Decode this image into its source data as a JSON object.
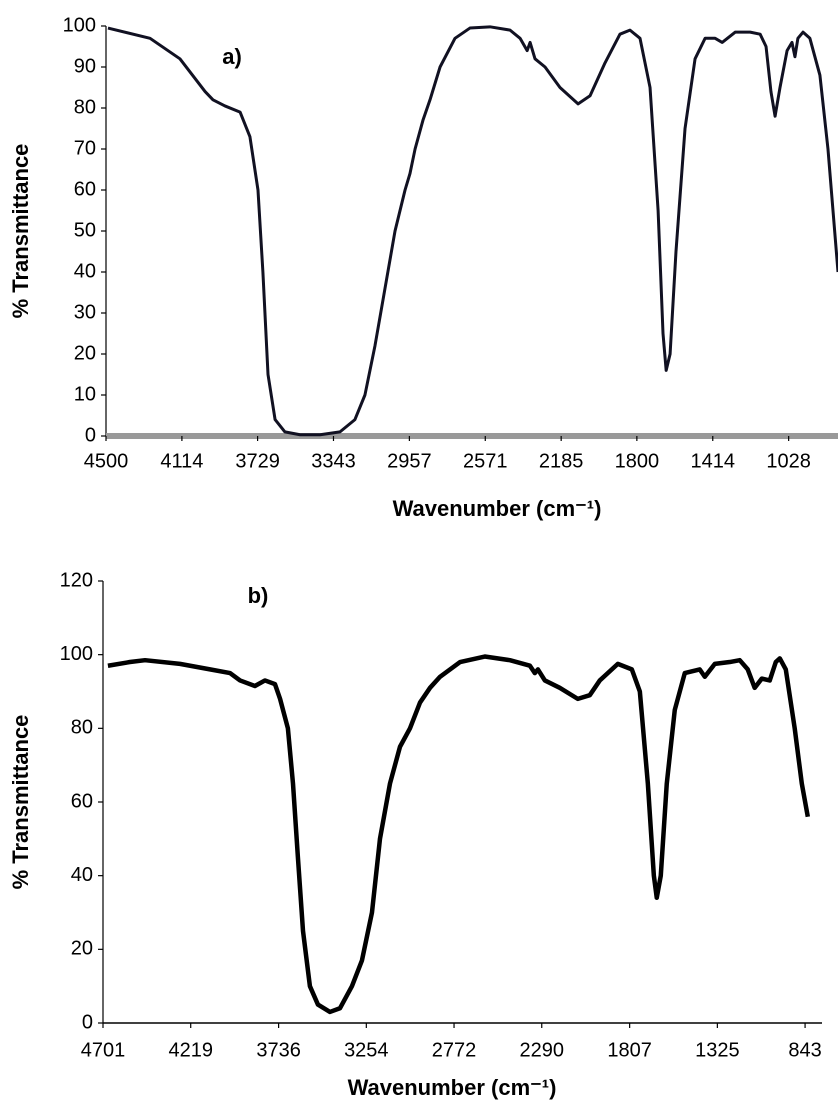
{
  "chart_data": [
    {
      "type": "line",
      "annotation": "a)",
      "xlabel": "Wavenumber (cm⁻¹)",
      "ylabel": "% Transmittance",
      "color": "#111122",
      "x_axis_color": "#999999",
      "xlim": [
        4500,
        777
      ],
      "xticks": [
        4500,
        4114,
        3729,
        3343,
        2957,
        2571,
        2185,
        1800,
        1414,
        1028
      ],
      "ylim": [
        0,
        100
      ],
      "yticks": [
        0,
        10,
        20,
        30,
        40,
        50,
        60,
        70,
        80,
        90,
        100
      ],
      "grid": false,
      "x": [
        4490,
        4276,
        4124,
        3996,
        3956,
        3895,
        3818,
        3768,
        3727,
        3702,
        3676,
        3640,
        3590,
        3513,
        3411,
        3310,
        3234,
        3183,
        3132,
        3081,
        3030,
        2979,
        2954,
        2928,
        2888,
        2852,
        2801,
        2725,
        2649,
        2547,
        2445,
        2394,
        2358,
        2343,
        2318,
        2267,
        2191,
        2099,
        2038,
        1962,
        1886,
        1835,
        1784,
        1733,
        1692,
        1667,
        1651,
        1631,
        1601,
        1555,
        1504,
        1453,
        1402,
        1366,
        1300,
        1224,
        1173,
        1143,
        1118,
        1097,
        1072,
        1036,
        1011,
        996,
        981,
        955,
        920,
        869,
        828,
        777
      ],
      "values": [
        99.5,
        97,
        92,
        84,
        82,
        80.5,
        79,
        73,
        60,
        40,
        15,
        4,
        1,
        0.3,
        0.3,
        1,
        4,
        10,
        22,
        36,
        50,
        60,
        64,
        70,
        77,
        82,
        90,
        97,
        99.5,
        99.8,
        99,
        97,
        94,
        96,
        92,
        90,
        85,
        81,
        83,
        91,
        98,
        99,
        97,
        85,
        55,
        25,
        16,
        20,
        45,
        75,
        92,
        97,
        97,
        96,
        98.5,
        98.5,
        98,
        95,
        84,
        78,
        85,
        94,
        96,
        92.5,
        97,
        98.5,
        97,
        88,
        70,
        40
      ]
    },
    {
      "type": "line",
      "annotation": "b)",
      "xlabel": "Wavenumber (cm⁻¹)",
      "ylabel": "% Transmittance",
      "color": "#000000",
      "x_axis_color": "#000000",
      "xlim": [
        4701,
        750
      ],
      "xticks": [
        4701,
        4219,
        3736,
        3254,
        2772,
        2290,
        1807,
        1325,
        843
      ],
      "ylim": [
        0,
        120
      ],
      "yticks": [
        0,
        20,
        40,
        60,
        80,
        100,
        120
      ],
      "grid": false,
      "x": [
        4674,
        4553,
        4470,
        4278,
        4113,
        4003,
        3948,
        3866,
        3811,
        3756,
        3728,
        3685,
        3657,
        3630,
        3602,
        3564,
        3520,
        3454,
        3399,
        3333,
        3278,
        3223,
        3179,
        3124,
        3069,
        3014,
        2959,
        2904,
        2849,
        2739,
        2603,
        2465,
        2355,
        2328,
        2311,
        2273,
        2191,
        2092,
        2026,
        1971,
        1872,
        1795,
        1751,
        1707,
        1674,
        1658,
        1636,
        1603,
        1559,
        1504,
        1422,
        1394,
        1339,
        1257,
        1202,
        1158,
        1120,
        1081,
        1037,
        1004,
        982,
        949,
        900,
        861,
        828
      ],
      "values": [
        97,
        98,
        98.5,
        97.5,
        96,
        95,
        93,
        91.5,
        93,
        92,
        88,
        80,
        65,
        45,
        25,
        10,
        5,
        3,
        4,
        10,
        17,
        30,
        50,
        65,
        75,
        80,
        87,
        91,
        94,
        98,
        99.5,
        98.5,
        97,
        95,
        96,
        93,
        91,
        88,
        89,
        93,
        97.5,
        96,
        90,
        65,
        40,
        34,
        40,
        65,
        85,
        95,
        96,
        94,
        97.5,
        98,
        98.5,
        96,
        91,
        93.5,
        93,
        98,
        99,
        96,
        80,
        65,
        56
      ]
    }
  ]
}
